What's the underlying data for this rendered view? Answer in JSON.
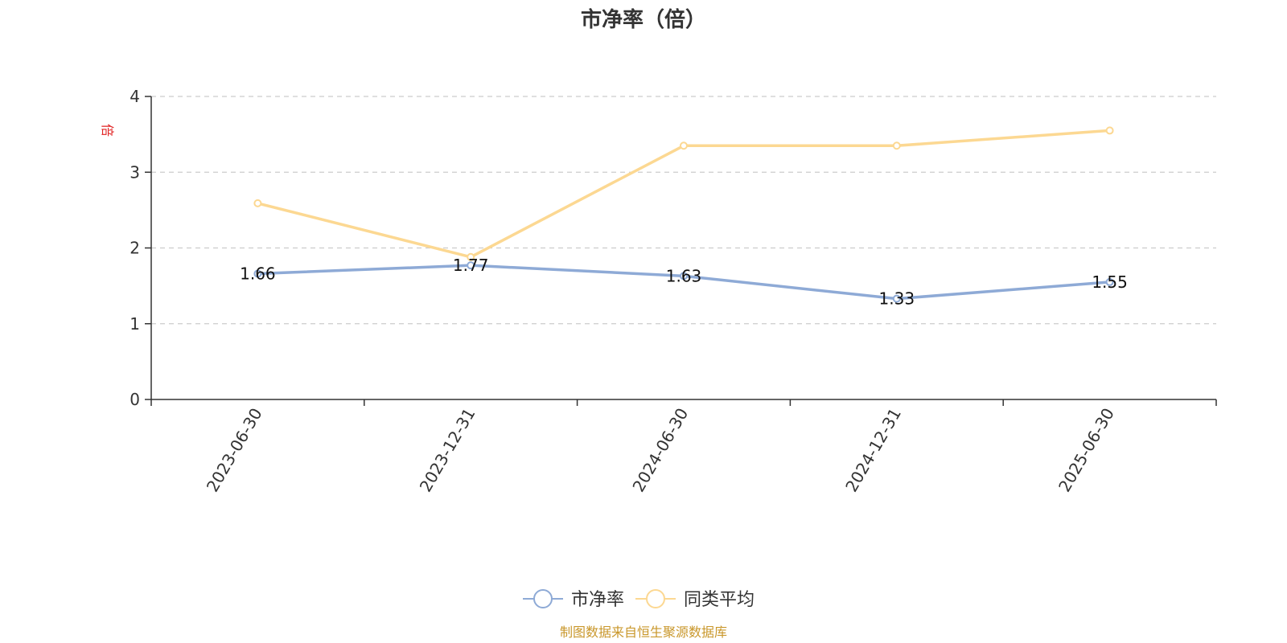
{
  "chart_data": {
    "type": "line",
    "title": "市净率（倍）",
    "ylabel": "倍",
    "xlabel": "",
    "categories": [
      "2023-06-30",
      "2023-12-31",
      "2024-06-30",
      "2024-12-31",
      "2025-06-30"
    ],
    "ylim": [
      0,
      4
    ],
    "yticks": [
      0,
      1,
      2,
      3,
      4
    ],
    "grid": true,
    "legend_position": "bottom-center",
    "series": [
      {
        "name": "市净率",
        "values": [
          1.66,
          1.77,
          1.63,
          1.33,
          1.55
        ],
        "labels": [
          "1.66",
          "1.77",
          "1.63",
          "1.33",
          "1.55"
        ],
        "color": "#8eaad6"
      },
      {
        "name": "同类平均",
        "values": [
          2.59,
          1.88,
          3.35,
          3.35,
          3.55
        ],
        "color": "#fcd892"
      }
    ]
  },
  "footer": {
    "source": "制图数据来自恒生聚源数据库"
  }
}
